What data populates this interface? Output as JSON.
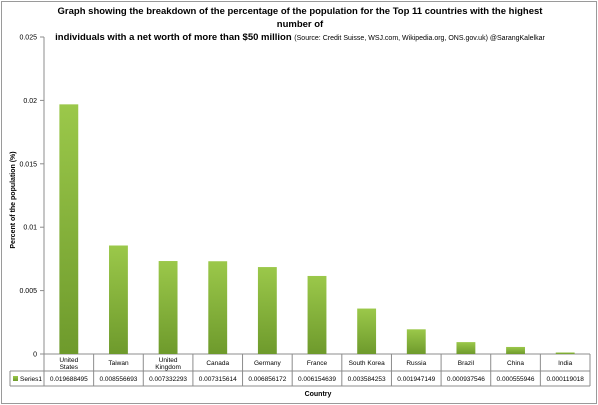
{
  "chart_data": {
    "type": "bar",
    "title_line1": "Graph showing the breakdown of the percentage of the population for the Top 11 countries with the highest number of",
    "title_line2": "individuals with a net worth of more than $50 million",
    "title_source": "(Source: Credit Suisse, WSJ.com, Wikipedia.org, ONS.gov.uk) @SarangKalelkar",
    "xlabel": "Country",
    "ylabel": "Percent of the population (%)",
    "ylim": [
      0,
      0.025
    ],
    "yticks": [
      "0",
      "0.005",
      "0.01",
      "0.015",
      "0.02",
      "0.025"
    ],
    "categories": [
      "United States",
      "Taiwan",
      "United Kingdom",
      "Canada",
      "Germany",
      "France",
      "South Korea",
      "Russia",
      "Brazil",
      "China",
      "India"
    ],
    "series": [
      {
        "name": "Series1",
        "values": [
          0.019688495,
          0.008556693,
          0.007332293,
          0.007315614,
          0.006856172,
          0.006154639,
          0.003584253,
          0.001947149,
          0.000937546,
          0.000555946,
          0.000119018
        ],
        "labels": [
          "0.019688495",
          "0.008556693",
          "0.007332293",
          "0.007315614",
          "0.006856172",
          "0.006154639",
          "0.003584253",
          "0.001947149",
          "0.000937546",
          "0.000555946",
          "0.000119018"
        ]
      }
    ],
    "data_table": true,
    "grid": false,
    "colors": {
      "bar_top": "#9bc84a",
      "bar_bottom": "#6e9a2c",
      "axis": "#8c8c8c"
    }
  }
}
